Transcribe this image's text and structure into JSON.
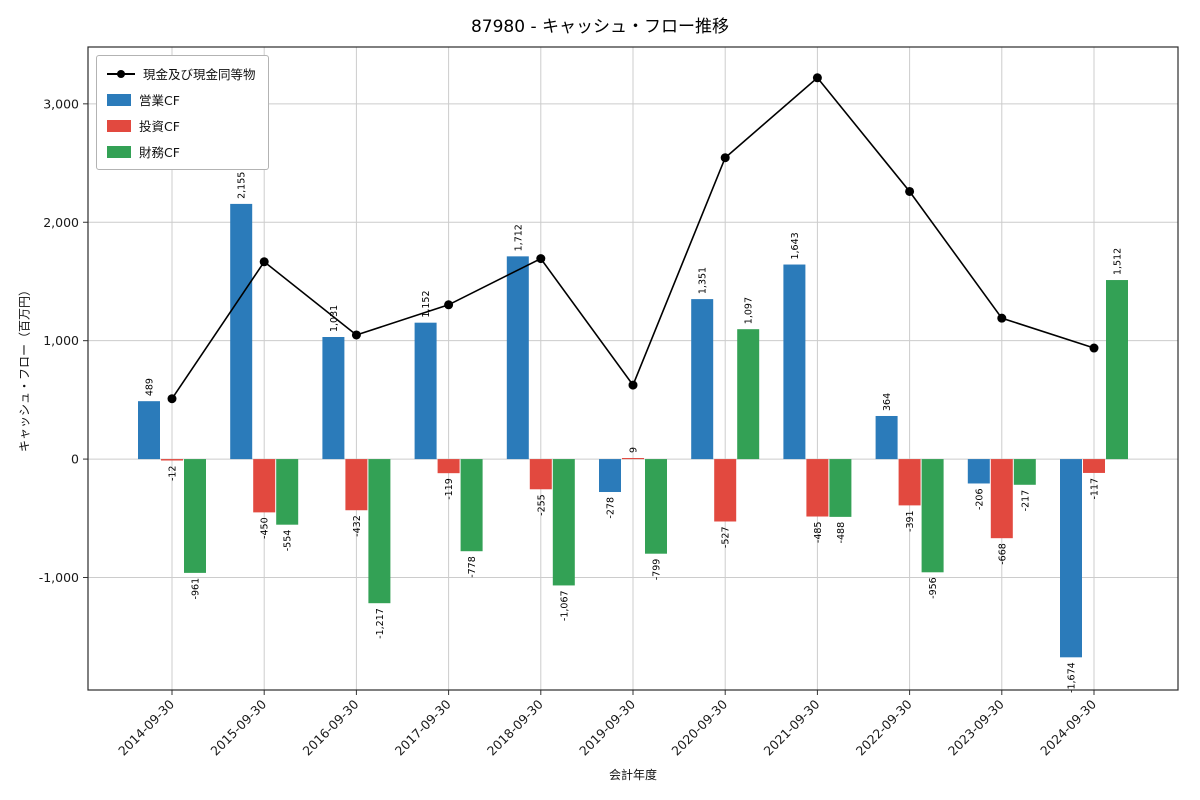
{
  "title": "87980 - キャッシュ・フロー推移",
  "axes": {
    "xlabel": "会計年度",
    "ylabel": "キャッシュ・フロー（百万円）"
  },
  "chart_data": {
    "type": "bar-line-combo",
    "title": "87980 - キャッシュ・フロー推移",
    "xlabel": "会計年度",
    "ylabel": "キャッシュ・フロー（百万円）",
    "categories": [
      "2014-09-30",
      "2015-09-30",
      "2016-09-30",
      "2017-09-30",
      "2018-09-30",
      "2019-09-30",
      "2020-09-30",
      "2021-09-30",
      "2022-09-30",
      "2023-09-30",
      "2024-09-30"
    ],
    "bar_series": [
      {
        "name": "営業CF",
        "color": "#2b7bba",
        "values": [
          489,
          2155,
          1031,
          1152,
          1712,
          -278,
          1351,
          1643,
          364,
          -206,
          -1674
        ]
      },
      {
        "name": "投資CF",
        "color": "#e2493f",
        "values": [
          -12,
          -450,
          -432,
          -119,
          -255,
          9,
          -527,
          -485,
          -391,
          -668,
          -117
        ]
      },
      {
        "name": "財務CF",
        "color": "#33a155",
        "values": [
          -961,
          -554,
          -1217,
          -778,
          -1067,
          -799,
          1097,
          -488,
          -956,
          -217,
          1512
        ]
      }
    ],
    "line_series": {
      "name": "現金及び現金同等物",
      "color": "#000000",
      "values": [
        510,
        1666,
        1048,
        1303,
        1693,
        625,
        2545,
        3220,
        2260,
        1190,
        938
      ]
    },
    "yticks": [
      -1000,
      0,
      1000,
      2000,
      3000
    ],
    "ylim": [
      -1950,
      3480
    ],
    "grid": true,
    "grid_color": "#cccccc",
    "legend_position": "upper-left",
    "bar_label_rotation": 90,
    "xtick_rotation": 45
  }
}
